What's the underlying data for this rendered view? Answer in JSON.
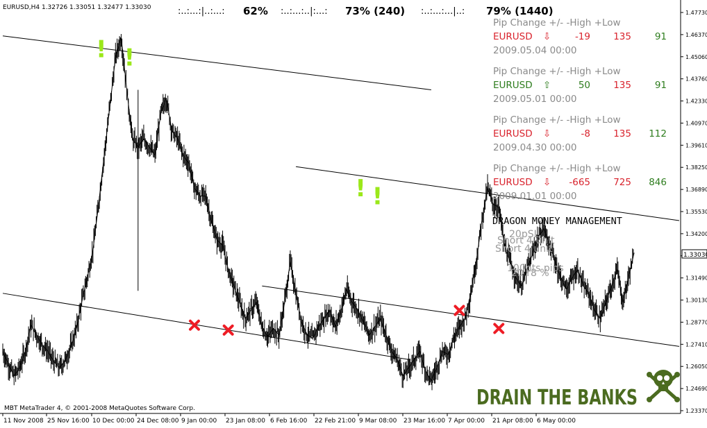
{
  "header": {
    "symbol_info": "EURUSD,H4  1.32726  1.33051  1.32477  1.33030",
    "meters": [
      {
        "bar": ":..:...:|..:...:",
        "value": "62%"
      },
      {
        "bar": ":..:...:..|:...:",
        "value": "73%  (240)"
      },
      {
        "bar": ":..:...:...|..:",
        "value": "79%  (1440)"
      }
    ]
  },
  "pip_panels": [
    {
      "header": "Pip Change +/-  -High +Low",
      "symbol": "EURUSD",
      "direction": "down",
      "arrow": "⇩",
      "change": "-19",
      "high": "135",
      "low": "91",
      "date": "2009.05.04 00:00"
    },
    {
      "header": "Pip Change +/-  -High +Low",
      "symbol": "EURUSD",
      "direction": "up",
      "arrow": "⇧",
      "change": "50",
      "high": "135",
      "low": "91",
      "date": "2009.05.01 00:00"
    },
    {
      "header": "Pip Change +/-  -High +Low",
      "symbol": "EURUSD",
      "direction": "down",
      "arrow": "⇩",
      "change": "-8",
      "high": "135",
      "low": "112",
      "date": "2009.04.30 00:00"
    },
    {
      "header": "Pip Change +/-  -High +Low",
      "symbol": "EURUSD",
      "direction": "down",
      "arrow": "⇩",
      "change": "-665",
      "high": "725",
      "low": "846",
      "date": "2009.01.01 00:00"
    }
  ],
  "money_management": {
    "title": "DRAGON MONEY MANAGEMENT",
    "overlapping_texts": [
      "20pSL",
      "Short 4 unit",
      "Short 4 unit",
      "100pts pips",
      "20 r8 %"
    ]
  },
  "branding": {
    "slogan": "DRAIN THE BANKS",
    "icon": "skull-crossbones-icon"
  },
  "copyright": "MBT MetaTrader 4, © 2001-2008 MetaQuotes Software Corp.",
  "price_marker": "1.33030",
  "colors": {
    "up": "#2e7d1e",
    "down": "#d9232d",
    "text": "#8a8a8a",
    "signal": "#9be81a",
    "cross": "#ee1c25",
    "brand": "#4b6b20"
  },
  "chart_data": {
    "type": "line",
    "symbol": "EURUSD",
    "timeframe": "H4",
    "grid": false,
    "y_ticks": [
      "1.47730",
      "1.46370",
      "1.45060",
      "1.43760",
      "1.42330",
      "1.40970",
      "1.39610",
      "1.38250",
      "1.36890",
      "1.35530",
      "1.34200",
      "1.32840",
      "1.31490",
      "1.30130",
      "1.28770",
      "1.27410",
      "1.26050",
      "1.24690",
      "1.23370"
    ],
    "ylim": [
      1.2337,
      1.4773
    ],
    "x_ticks": [
      "11 Nov 2008",
      "25 Nov 16:00",
      "10 Dec 00:00",
      "24 Dec 08:00",
      "9 Jan 00:00",
      "23 Jan 08:00",
      "6 Feb 16:00",
      "22 Feb 21:00",
      "9 Mar 08:00",
      "23 Mar 16:00",
      "7 Apr 00:00",
      "21 Apr 08:00",
      "6 May 00:00"
    ],
    "close_path": [
      [
        0,
        1.27
      ],
      [
        1,
        1.262
      ],
      [
        2,
        1.255
      ],
      [
        3,
        1.26
      ],
      [
        4,
        1.27
      ],
      [
        5,
        1.286
      ],
      [
        6,
        1.28
      ],
      [
        7,
        1.274
      ],
      [
        8,
        1.27
      ],
      [
        9,
        1.264
      ],
      [
        10,
        1.26
      ],
      [
        11,
        1.264
      ],
      [
        12,
        1.272
      ],
      [
        13,
        1.283
      ],
      [
        14,
        1.3
      ],
      [
        15,
        1.315
      ],
      [
        16,
        1.332
      ],
      [
        17,
        1.36
      ],
      [
        18,
        1.39
      ],
      [
        19,
        1.42
      ],
      [
        20,
        1.45
      ],
      [
        21,
        1.462
      ],
      [
        22,
        1.43
      ],
      [
        23,
        1.4
      ],
      [
        24,
        1.395
      ],
      [
        25,
        1.4
      ],
      [
        26,
        1.395
      ],
      [
        27,
        1.39
      ],
      [
        28,
        1.415
      ],
      [
        29,
        1.425
      ],
      [
        30,
        1.405
      ],
      [
        31,
        1.4
      ],
      [
        32,
        1.39
      ],
      [
        33,
        1.385
      ],
      [
        34,
        1.37
      ],
      [
        35,
        1.365
      ],
      [
        36,
        1.365
      ],
      [
        37,
        1.35
      ],
      [
        38,
        1.338
      ],
      [
        39,
        1.335
      ],
      [
        40,
        1.32
      ],
      [
        41,
        1.31
      ],
      [
        42,
        1.3
      ],
      [
        43,
        1.29
      ],
      [
        44,
        1.295
      ],
      [
        45,
        1.3
      ],
      [
        46,
        1.285
      ],
      [
        47,
        1.279
      ],
      [
        48,
        1.284
      ],
      [
        49,
        1.28
      ],
      [
        50,
        1.3
      ],
      [
        51,
        1.325
      ],
      [
        52,
        1.305
      ],
      [
        53,
        1.288
      ],
      [
        54,
        1.28
      ],
      [
        55,
        1.278
      ],
      [
        56,
        1.285
      ],
      [
        57,
        1.29
      ],
      [
        58,
        1.295
      ],
      [
        59,
        1.285
      ],
      [
        60,
        1.295
      ],
      [
        61,
        1.308
      ],
      [
        62,
        1.3
      ],
      [
        63,
        1.295
      ],
      [
        64,
        1.288
      ],
      [
        65,
        1.28
      ],
      [
        66,
        1.285
      ],
      [
        67,
        1.29
      ],
      [
        68,
        1.28
      ],
      [
        69,
        1.27
      ],
      [
        70,
        1.265
      ],
      [
        71,
        1.255
      ],
      [
        72,
        1.26
      ],
      [
        73,
        1.265
      ],
      [
        74,
        1.27
      ],
      [
        75,
        1.258
      ],
      [
        76,
        1.252
      ],
      [
        77,
        1.26
      ],
      [
        78,
        1.27
      ],
      [
        79,
        1.268
      ],
      [
        80,
        1.278
      ],
      [
        81,
        1.285
      ],
      [
        82,
        1.29
      ],
      [
        83,
        1.305
      ],
      [
        84,
        1.325
      ],
      [
        85,
        1.35
      ],
      [
        86,
        1.37
      ],
      [
        87,
        1.36
      ],
      [
        88,
        1.358
      ],
      [
        89,
        1.335
      ],
      [
        90,
        1.325
      ],
      [
        91,
        1.315
      ],
      [
        92,
        1.31
      ],
      [
        93,
        1.32
      ],
      [
        94,
        1.33
      ],
      [
        95,
        1.34
      ],
      [
        96,
        1.345
      ],
      [
        97,
        1.335
      ],
      [
        98,
        1.325
      ],
      [
        99,
        1.315
      ],
      [
        100,
        1.308
      ],
      [
        101,
        1.315
      ],
      [
        102,
        1.32
      ],
      [
        103,
        1.31
      ],
      [
        104,
        1.305
      ],
      [
        105,
        1.295
      ],
      [
        106,
        1.29
      ],
      [
        107,
        1.3
      ],
      [
        108,
        1.31
      ],
      [
        109,
        1.32
      ],
      [
        110,
        1.3
      ],
      [
        111,
        1.315
      ],
      [
        112,
        1.3303
      ]
    ],
    "channel_lines": [
      {
        "x1": 0,
        "y1": 1.463,
        "x2": 76,
        "y2": 1.43
      },
      {
        "x1": 0,
        "y1": 1.3055,
        "x2": 72,
        "y2": 1.265
      },
      {
        "x1": 52,
        "y1": 1.383,
        "x2": 120,
        "y2": 1.35
      },
      {
        "x1": 46,
        "y1": 1.31,
        "x2": 120,
        "y2": 1.273
      }
    ],
    "spike": {
      "x": 24,
      "y_from": 1.43,
      "y_to": 1.307
    },
    "exclamation_markers": [
      [
        17,
        1.455
      ],
      [
        22,
        1.45
      ],
      [
        63,
        1.37
      ],
      [
        66,
        1.365
      ]
    ],
    "cross_markers": [
      [
        34,
        1.286
      ],
      [
        40,
        1.283
      ],
      [
        81,
        1.295
      ],
      [
        88,
        1.284
      ]
    ],
    "x_max": 120
  }
}
